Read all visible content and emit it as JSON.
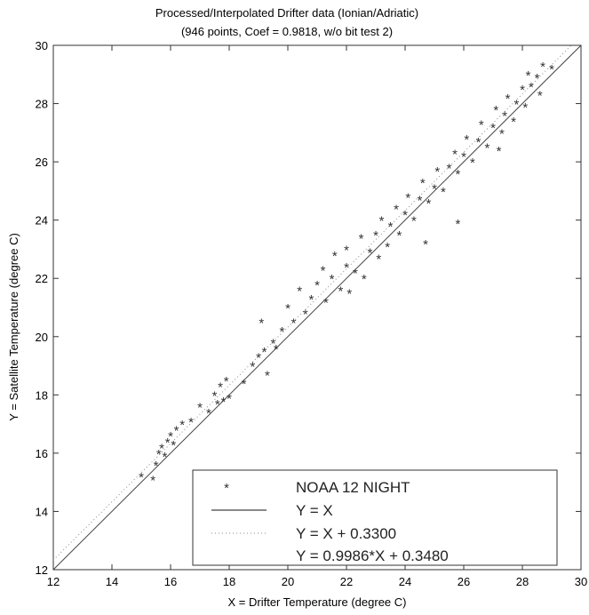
{
  "chart_data": {
    "type": "scatter",
    "title": "Processed/Interpolated Drifter data (Ionian/Adriatic)",
    "subtitle": "(946 points, Coef = 0.9818, w/o bit test 2)",
    "xlabel": "X = Drifter Temperature (degree C)",
    "ylabel": "Y = Satellite Temperature (degree C)",
    "xlim": [
      12,
      30
    ],
    "ylim": [
      12,
      30
    ],
    "xticks": [
      "12",
      "14",
      "16",
      "18",
      "20",
      "22",
      "24",
      "26",
      "28",
      "30"
    ],
    "yticks": [
      "12",
      "14",
      "16",
      "18",
      "20",
      "22",
      "24",
      "26",
      "28",
      "30"
    ],
    "grid": false,
    "legend_position": "bottom-right",
    "series": [
      {
        "name": "NOAA 12 NIGHT",
        "kind": "scatter",
        "marker": "*",
        "color": "#333333",
        "points": [
          [
            15.0,
            15.2
          ],
          [
            15.4,
            15.1
          ],
          [
            15.5,
            15.6
          ],
          [
            15.6,
            16.0
          ],
          [
            15.7,
            16.2
          ],
          [
            15.8,
            15.9
          ],
          [
            15.9,
            16.4
          ],
          [
            16.0,
            16.6
          ],
          [
            16.1,
            16.3
          ],
          [
            16.2,
            16.8
          ],
          [
            16.4,
            17.0
          ],
          [
            16.7,
            17.1
          ],
          [
            17.0,
            17.6
          ],
          [
            17.3,
            17.4
          ],
          [
            17.5,
            18.0
          ],
          [
            17.6,
            17.7
          ],
          [
            17.7,
            18.3
          ],
          [
            17.8,
            17.8
          ],
          [
            17.9,
            18.5
          ],
          [
            18.0,
            17.9
          ],
          [
            18.5,
            18.4
          ],
          [
            18.8,
            19.0
          ],
          [
            19.0,
            19.3
          ],
          [
            19.1,
            20.5
          ],
          [
            19.2,
            19.5
          ],
          [
            19.3,
            18.7
          ],
          [
            19.5,
            19.8
          ],
          [
            19.6,
            19.6
          ],
          [
            19.8,
            20.2
          ],
          [
            20.0,
            21.0
          ],
          [
            20.2,
            20.5
          ],
          [
            20.4,
            21.6
          ],
          [
            20.6,
            20.8
          ],
          [
            20.8,
            21.3
          ],
          [
            21.0,
            21.8
          ],
          [
            21.2,
            22.3
          ],
          [
            21.3,
            21.2
          ],
          [
            21.5,
            22.0
          ],
          [
            21.6,
            22.8
          ],
          [
            21.8,
            21.6
          ],
          [
            22.0,
            22.4
          ],
          [
            22.0,
            23.0
          ],
          [
            22.1,
            21.5
          ],
          [
            22.3,
            22.2
          ],
          [
            22.5,
            23.4
          ],
          [
            22.6,
            22.0
          ],
          [
            22.8,
            22.9
          ],
          [
            23.0,
            23.5
          ],
          [
            23.1,
            22.7
          ],
          [
            23.2,
            24.0
          ],
          [
            23.4,
            23.1
          ],
          [
            23.5,
            23.8
          ],
          [
            23.7,
            24.4
          ],
          [
            23.8,
            23.5
          ],
          [
            24.0,
            24.2
          ],
          [
            24.1,
            24.8
          ],
          [
            24.3,
            24.0
          ],
          [
            24.5,
            24.7
          ],
          [
            24.6,
            25.3
          ],
          [
            24.8,
            24.6
          ],
          [
            25.0,
            25.1
          ],
          [
            25.1,
            25.7
          ],
          [
            25.3,
            25.0
          ],
          [
            25.5,
            25.8
          ],
          [
            25.7,
            26.3
          ],
          [
            25.8,
            25.6
          ],
          [
            26.0,
            26.2
          ],
          [
            26.1,
            26.8
          ],
          [
            26.3,
            26.0
          ],
          [
            26.5,
            26.7
          ],
          [
            26.6,
            27.3
          ],
          [
            26.8,
            26.5
          ],
          [
            27.0,
            27.2
          ],
          [
            27.1,
            27.8
          ],
          [
            27.3,
            27.0
          ],
          [
            27.4,
            27.6
          ],
          [
            27.5,
            28.2
          ],
          [
            27.7,
            27.4
          ],
          [
            27.8,
            28.0
          ],
          [
            28.0,
            28.5
          ],
          [
            28.1,
            27.9
          ],
          [
            28.3,
            28.6
          ],
          [
            28.5,
            28.9
          ],
          [
            28.6,
            28.3
          ],
          [
            28.7,
            29.3
          ],
          [
            29.0,
            29.2
          ],
          [
            28.2,
            29.0
          ],
          [
            27.2,
            26.4
          ],
          [
            24.7,
            23.2
          ],
          [
            25.8,
            23.9
          ]
        ]
      },
      {
        "name": "Y = X",
        "kind": "line",
        "slope": 1,
        "intercept": 0,
        "style": "solid",
        "color": "#444444"
      },
      {
        "name": "Y = X + 0.3300",
        "kind": "line",
        "slope": 1,
        "intercept": 0.33,
        "style": "dotted",
        "color": "#888888"
      },
      {
        "name": "Y = 0.9986*X + 0.3480",
        "kind": "line",
        "slope": 0.9986,
        "intercept": 0.348,
        "style": "none",
        "color": "#888888"
      }
    ]
  }
}
